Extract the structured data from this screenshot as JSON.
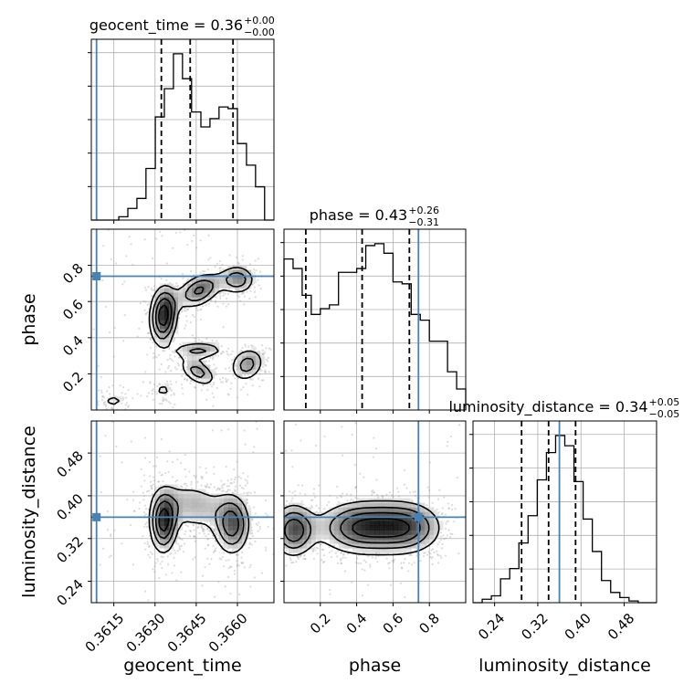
{
  "chart_data": {
    "type": "corner",
    "parameters": [
      "geocent_time",
      "phase",
      "luminosity_distance"
    ],
    "truth": {
      "geocent_time": 0.36087,
      "phase": 0.74,
      "luminosity_distance": 0.36
    },
    "truth_color": "#4682b4",
    "titles": [
      {
        "text": "geocent_time = 0.36",
        "sup": "+0.00",
        "sub": "−0.00"
      },
      {
        "text": "phase = 0.43",
        "sup": "+0.26",
        "sub": "−0.31"
      },
      {
        "text": "luminosity_distance = 0.34",
        "sup": "+0.05",
        "sub": "−0.05"
      }
    ],
    "axis_labels": {
      "geocent_time": "geocent_time",
      "phase": "phase",
      "luminosity_distance": "luminosity_distance"
    },
    "ranges": {
      "geocent_time": [
        0.36068,
        0.36733
      ],
      "phase": [
        0.0,
        1.0
      ],
      "luminosity_distance": [
        0.2,
        0.54
      ]
    },
    "ticks": {
      "geocent_time": {
        "values": [
          0.3615,
          0.363,
          0.3645,
          0.366
        ],
        "labels": [
          "0.3615",
          "0.3630",
          "0.3645",
          "0.3660"
        ]
      },
      "phase": {
        "values": [
          0.2,
          0.4,
          0.6,
          0.8
        ],
        "labels": [
          "0.2",
          "0.4",
          "0.6",
          "0.8"
        ]
      },
      "luminosity_distance": {
        "values": [
          0.24,
          0.32,
          0.4,
          0.48
        ],
        "labels": [
          "0.24",
          "0.32",
          "0.40",
          "0.48"
        ]
      }
    },
    "marginals": {
      "geocent_time": {
        "edges": [
          0.36068,
          0.36101,
          0.36134,
          0.36168,
          0.36201,
          0.36234,
          0.36267,
          0.36301,
          0.36334,
          0.36367,
          0.364,
          0.36433,
          0.36467,
          0.365,
          0.36533,
          0.36566,
          0.366,
          0.36633,
          0.36666,
          0.36699,
          0.36733
        ],
        "counts": [
          0,
          0,
          0,
          2,
          7,
          13,
          31,
          62,
          79,
          100,
          85,
          65,
          56,
          61,
          68,
          67,
          46,
          33,
          20,
          0
        ],
        "quantiles": [
          0.36323,
          0.36428,
          0.36584
        ]
      },
      "phase": {
        "edges": [
          0.0,
          0.05,
          0.1,
          0.15,
          0.2,
          0.25,
          0.3,
          0.35,
          0.4,
          0.45,
          0.5,
          0.55,
          0.6,
          0.65,
          0.7,
          0.75,
          0.8,
          0.85,
          0.9,
          0.95,
          1.0
        ],
        "counts": [
          79,
          74,
          60,
          50,
          53,
          55,
          72,
          72,
          74,
          86,
          87,
          82,
          67,
          66,
          50,
          47,
          36,
          36,
          20,
          11
        ],
        "quantiles": [
          0.12,
          0.43,
          0.69
        ]
      },
      "luminosity_distance": {
        "edges": [
          0.2,
          0.217,
          0.234,
          0.251,
          0.268,
          0.285,
          0.302,
          0.319,
          0.336,
          0.353,
          0.37,
          0.387,
          0.404,
          0.421,
          0.438,
          0.455,
          0.472,
          0.489,
          0.506,
          0.523,
          0.54
        ],
        "counts": [
          0,
          2,
          4,
          14,
          20,
          35,
          51,
          72,
          88,
          98,
          92,
          71,
          49,
          30,
          13,
          6,
          3,
          1,
          0,
          0
        ],
        "quantiles": [
          0.29,
          0.34,
          0.39
        ]
      }
    },
    "joint": [
      {
        "x": "geocent_time",
        "y": "phase",
        "modes": [
          {
            "x": 0.36148,
            "y": 0.05,
            "sx": 0.00045,
            "sy": 0.045,
            "rho": 0.0,
            "w": 0.28
          },
          {
            "x": 0.3633,
            "y": 0.11,
            "sx": 0.0004,
            "sy": 0.04,
            "rho": 0.0,
            "w": 0.28
          },
          {
            "x": 0.36455,
            "y": 0.21,
            "sx": 0.00042,
            "sy": 0.05,
            "rho": -0.5,
            "w": 0.55
          },
          {
            "x": 0.36635,
            "y": 0.25,
            "sx": 0.0004,
            "sy": 0.06,
            "rho": 0.2,
            "w": 0.55
          },
          {
            "x": 0.3646,
            "y": 0.33,
            "sx": 0.0006,
            "sy": 0.03,
            "rho": 0.0,
            "w": 0.5
          },
          {
            "x": 0.3633,
            "y": 0.52,
            "sx": 0.0003,
            "sy": 0.1,
            "rho": 0.1,
            "w": 1.0
          },
          {
            "x": 0.3646,
            "y": 0.66,
            "sx": 0.0005,
            "sy": 0.06,
            "rho": 0.4,
            "w": 0.7
          },
          {
            "x": 0.366,
            "y": 0.72,
            "sx": 0.0004,
            "sy": 0.05,
            "rho": 0.0,
            "w": 0.6
          }
        ]
      },
      {
        "x": "geocent_time",
        "y": "luminosity_distance",
        "modes": [
          {
            "x": 0.3633,
            "y": 0.35,
            "sx": 0.0003,
            "sy": 0.035,
            "rho": 0.0,
            "w": 1.0
          },
          {
            "x": 0.3658,
            "y": 0.345,
            "sx": 0.0004,
            "sy": 0.035,
            "rho": 0.0,
            "w": 0.8
          },
          {
            "x": 0.3644,
            "y": 0.38,
            "sx": 0.0008,
            "sy": 0.03,
            "rho": -0.2,
            "w": 0.45
          }
        ]
      },
      {
        "x": "phase",
        "y": "luminosity_distance",
        "modes": [
          {
            "x": 0.05,
            "y": 0.335,
            "sx": 0.07,
            "sy": 0.03,
            "rho": 0.0,
            "w": 0.9
          },
          {
            "x": 0.43,
            "y": 0.34,
            "sx": 0.15,
            "sy": 0.03,
            "rho": 0.0,
            "w": 1.0
          },
          {
            "x": 0.68,
            "y": 0.34,
            "sx": 0.12,
            "sy": 0.03,
            "rho": 0.0,
            "w": 0.75
          }
        ]
      }
    ],
    "contour_levels": [
      0.25,
      0.45,
      0.65,
      0.85
    ],
    "grid": true,
    "histogram_color": "#000000",
    "quantile_line_style": "dashed"
  }
}
